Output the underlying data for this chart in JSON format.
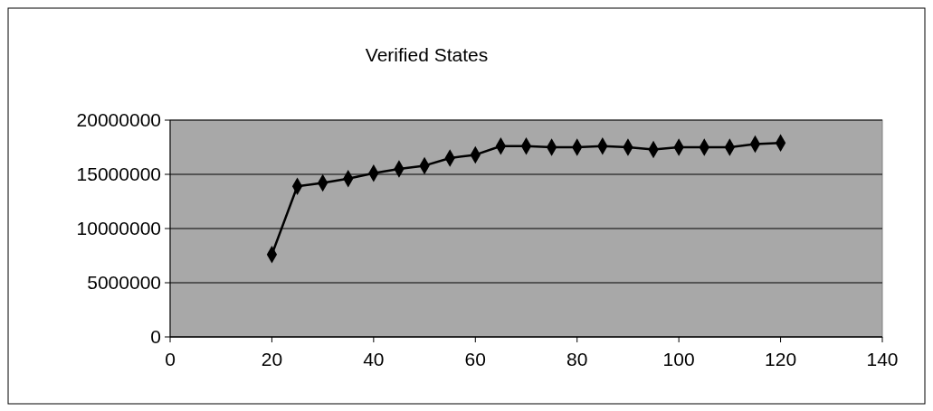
{
  "chart_data": {
    "type": "line",
    "title": "Verified States",
    "x": [
      20,
      25,
      30,
      35,
      40,
      45,
      50,
      55,
      60,
      65,
      70,
      75,
      80,
      85,
      90,
      95,
      100,
      105,
      110,
      115,
      120
    ],
    "series": [
      {
        "color": "#000000",
        "values": [
          7600000,
          13900000,
          14200000,
          14600000,
          15100000,
          15500000,
          15800000,
          16500000,
          16800000,
          17600000,
          17600000,
          17500000,
          17500000,
          17600000,
          17500000,
          17300000,
          17500000,
          17500000,
          17500000,
          17800000,
          17900000
        ]
      }
    ],
    "xlim": [
      0,
      140
    ],
    "xticks": [
      0,
      20,
      40,
      60,
      80,
      100,
      120,
      140
    ],
    "ylim": [
      0,
      20000000
    ],
    "yticks": [
      0,
      5000000,
      10000000,
      15000000,
      20000000
    ],
    "grid": "y",
    "marker": "diamond",
    "line_style": "solid"
  }
}
